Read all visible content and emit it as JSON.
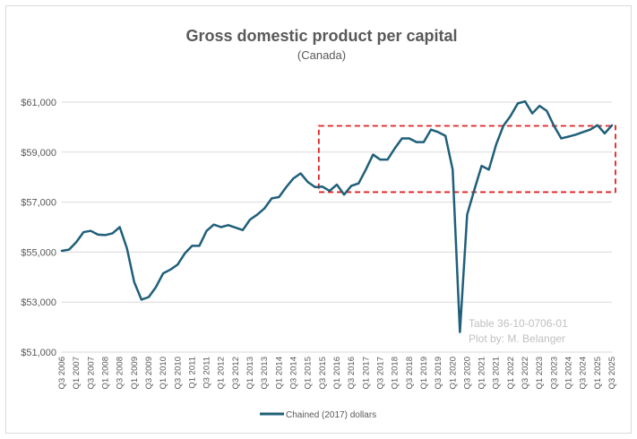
{
  "chart_data": {
    "type": "line",
    "title": "Gross domestic product per capital",
    "subtitle": "(Canada)",
    "annotation_lines": [
      "Table 36-10-0706-01",
      "Plot by: M. Belanger"
    ],
    "ylim": [
      51000,
      61000
    ],
    "y_ticks": [
      "$51,000",
      "$53,000",
      "$55,000",
      "$57,000",
      "$59,000",
      "$61,000"
    ],
    "y_tick_values": [
      51000,
      53000,
      55000,
      57000,
      59000,
      61000
    ],
    "x_tick_labels": [
      "Q3 2006",
      "Q1 2007",
      "Q3 2007",
      "Q1 2008",
      "Q3 2008",
      "Q1 2009",
      "Q3 2009",
      "Q1 2010",
      "Q3 2010",
      "Q1 2011",
      "Q3 2011",
      "Q1 2012",
      "Q3 2012",
      "Q1 2013",
      "Q3 2013",
      "Q1 2014",
      "Q3 2014",
      "Q1 2015",
      "Q3 2015",
      "Q1 2016",
      "Q3 2016",
      "Q1 2017",
      "Q3 2017",
      "Q1 2018",
      "Q3 2018",
      "Q1 2019",
      "Q3 2019",
      "Q1 2020",
      "Q3 2020",
      "Q1 2021",
      "Q3 2021",
      "Q1 2022",
      "Q3 2022",
      "Q1 2023",
      "Q3 2023",
      "Q1 2024",
      "Q3 2024",
      "Q1 2025",
      "Q3 2025"
    ],
    "legend_position": "bottom",
    "grid": "horizontal",
    "colors": {
      "line": "#1f5f7a",
      "grid": "#d9d9d9",
      "highlight_box": "#e02020",
      "annotation": "#c0c0c0"
    },
    "highlight_box": {
      "x_range": [
        "Q3 2015",
        "Q3 2025"
      ],
      "y_range": [
        57400,
        60050
      ]
    },
    "series": [
      {
        "name": "Chained (2017) dollars",
        "values": [
          55050,
          55100,
          55400,
          55800,
          55850,
          55700,
          55680,
          55750,
          56000,
          55150,
          53800,
          53100,
          53200,
          53600,
          54150,
          54300,
          54500,
          54950,
          55250,
          55250,
          55850,
          56100,
          56000,
          56080,
          55980,
          55880,
          56300,
          56500,
          56750,
          57150,
          57200,
          57600,
          57950,
          58150,
          57800,
          57600,
          57620,
          57450,
          57700,
          57300,
          57650,
          57750,
          58300,
          58900,
          58700,
          58700,
          59150,
          59550,
          59550,
          59400,
          59400,
          59900,
          59800,
          59650,
          58300,
          51800,
          56500,
          57500,
          58450,
          58300,
          59300,
          60050,
          60450,
          60950,
          61030,
          60550,
          60850,
          60650,
          60050,
          59550,
          59620,
          59700,
          59800,
          59900,
          60080,
          59750,
          60070
        ]
      }
    ]
  }
}
